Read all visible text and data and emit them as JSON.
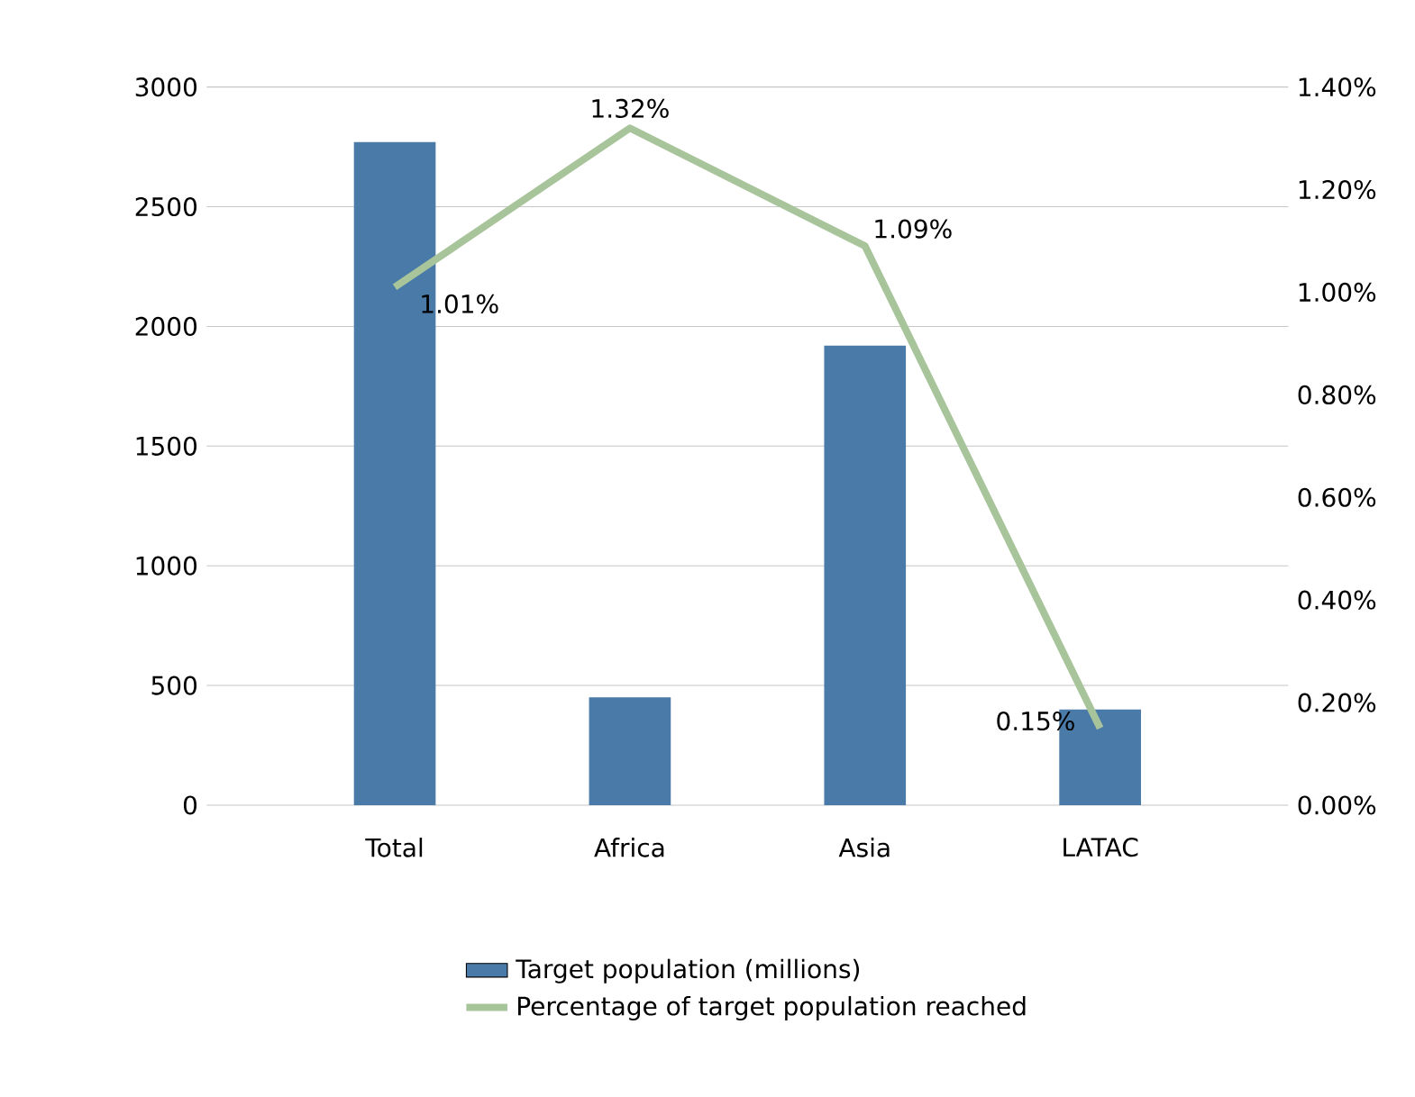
{
  "chart_data": {
    "type": "bar",
    "categories": [
      "Total",
      "Africa",
      "Asia",
      "LATAC"
    ],
    "series": [
      {
        "name": "Target population (millions)",
        "color": "#4a7aa8",
        "values": [
          2770,
          450,
          1920,
          400
        ]
      },
      {
        "name": "Percentage of target population reached",
        "type": "line",
        "axis": "y2",
        "color": "#a8c49b",
        "values": [
          1.01,
          1.32,
          1.09,
          0.15
        ],
        "value_labels": [
          "1.01%",
          "1.32%",
          "1.09%",
          "0.15%"
        ]
      }
    ],
    "ylim": [
      0,
      3000
    ],
    "yticks": [
      0,
      500,
      1000,
      1500,
      2000,
      2500,
      3000
    ],
    "y2lim": [
      0,
      1.4
    ],
    "y2ticks": [
      {
        "value": 0,
        "label": "0.00%"
      },
      {
        "value": 0.2,
        "label": "0.20%"
      },
      {
        "value": 0.4,
        "label": "0.40%"
      },
      {
        "value": 0.6,
        "label": "0.60%"
      },
      {
        "value": 0.8,
        "label": "0.80%"
      },
      {
        "value": 1.0,
        "label": "1.00%"
      },
      {
        "value": 1.2,
        "label": "1.20%"
      },
      {
        "value": 1.4,
        "label": "1.40%"
      }
    ],
    "grid": "y",
    "legend": "bottom"
  }
}
